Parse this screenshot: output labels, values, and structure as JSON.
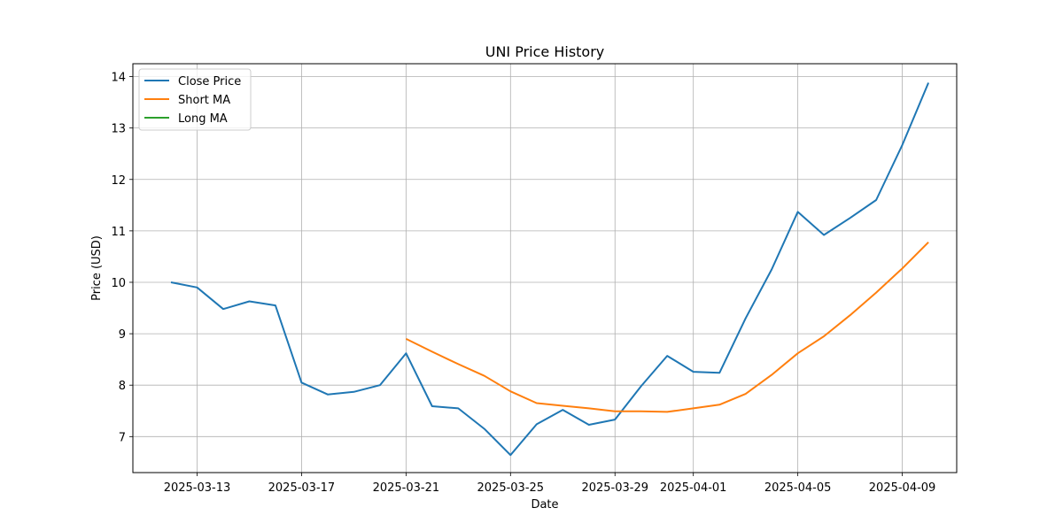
{
  "chart_data": {
    "type": "line",
    "title": "UNI Price History",
    "xlabel": "Date",
    "ylabel": "Price (USD)",
    "x": [
      "2025-03-12",
      "2025-03-13",
      "2025-03-14",
      "2025-03-15",
      "2025-03-16",
      "2025-03-17",
      "2025-03-18",
      "2025-03-19",
      "2025-03-20",
      "2025-03-21",
      "2025-03-22",
      "2025-03-23",
      "2025-03-24",
      "2025-03-25",
      "2025-03-26",
      "2025-03-27",
      "2025-03-28",
      "2025-03-29",
      "2025-03-30",
      "2025-03-31",
      "2025-04-01",
      "2025-04-02",
      "2025-04-03",
      "2025-04-04",
      "2025-04-05",
      "2025-04-06",
      "2025-04-07",
      "2025-04-08",
      "2025-04-09",
      "2025-04-10"
    ],
    "series": [
      {
        "name": "Close Price",
        "color": "#1f77b4",
        "values": [
          10.0,
          9.9,
          9.48,
          9.63,
          9.55,
          8.05,
          7.82,
          7.87,
          8.0,
          8.62,
          7.59,
          7.55,
          7.15,
          6.64,
          7.24,
          7.52,
          7.23,
          7.33,
          7.98,
          8.57,
          8.26,
          8.24,
          9.3,
          10.25,
          11.37,
          10.92,
          11.25,
          11.6,
          12.67,
          13.88
        ]
      },
      {
        "name": "Short MA",
        "color": "#ff7f0e",
        "values": [
          null,
          null,
          null,
          null,
          null,
          null,
          null,
          null,
          null,
          8.9,
          8.65,
          8.41,
          8.18,
          7.88,
          7.65,
          7.6,
          7.55,
          7.49,
          7.49,
          7.48,
          7.55,
          7.62,
          7.83,
          8.2,
          8.62,
          8.95,
          9.36,
          9.8,
          10.27,
          10.78
        ]
      },
      {
        "name": "Long MA",
        "color": "#2ca02c",
        "values": [
          null,
          null,
          null,
          null,
          null,
          null,
          null,
          null,
          null,
          null,
          null,
          null,
          null,
          null,
          null,
          null,
          null,
          null,
          null,
          null,
          null,
          null,
          null,
          null,
          null,
          null,
          null,
          null,
          null,
          null
        ]
      }
    ],
    "xticks": [
      "2025-03-13",
      "2025-03-17",
      "2025-03-21",
      "2025-03-25",
      "2025-03-29",
      "2025-04-01",
      "2025-04-05",
      "2025-04-09"
    ],
    "yticks": [
      7,
      8,
      9,
      10,
      11,
      12,
      13,
      14
    ],
    "xlim": [
      "2025-03-10T13:00",
      "2025-04-11T02:00"
    ],
    "ylim": [
      6.3,
      14.25
    ],
    "grid": true,
    "legend": "top-left"
  }
}
